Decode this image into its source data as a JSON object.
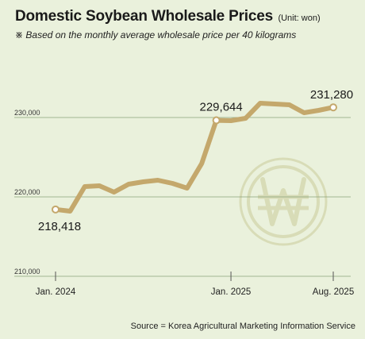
{
  "title": "Domestic Soybean Wholesale Prices",
  "unit": "(Unit: won)",
  "subtitle": "※ Based on the monthly average wholesale price per 40 kilograms",
  "source": "Source =  Korea Agricultural Marketing Information Service",
  "colors": {
    "background": "#eaf1dc",
    "line": "#c4a86c",
    "marker_fill": "#ffffff",
    "watermark": "#d8dcb7",
    "grid": "#8aa27a"
  },
  "watermark_icon": "won-coin-icon",
  "chart_data": {
    "type": "line",
    "title": "Domestic Soybean Wholesale Prices",
    "xlabel": "",
    "ylabel": "",
    "x": [
      "2024-01",
      "2024-02",
      "2024-03",
      "2024-04",
      "2024-05",
      "2024-06",
      "2024-07",
      "2024-08",
      "2024-09",
      "2024-10",
      "2024-11",
      "2024-12",
      "2025-01",
      "2025-02",
      "2025-03",
      "2025-04",
      "2025-05",
      "2025-06",
      "2025-07",
      "2025-08"
    ],
    "y_ticks": [
      210000,
      220000,
      230000
    ],
    "y_tick_labels": [
      "210,000",
      "220,000",
      "230,000"
    ],
    "x_tick_labels": [
      {
        "x": "2024-01",
        "label": "Jan. 2024"
      },
      {
        "x": "2025-01",
        "label": "Jan. 2025"
      },
      {
        "x": "2025-08",
        "label": "Aug. 2025"
      }
    ],
    "ylim": [
      210000,
      232000
    ],
    "grid": true,
    "series": [
      {
        "values": [
          218418,
          218200,
          221300,
          221400,
          220600,
          221600,
          221900,
          222100,
          221700,
          221100,
          224200,
          229644,
          229600,
          229900,
          231800,
          231700,
          231600,
          230600,
          230900,
          231280
        ]
      }
    ],
    "data_labels": [
      {
        "x": "2024-01",
        "text": "218,418",
        "position": "below-left"
      },
      {
        "x": "2024-12",
        "text": "229,644",
        "position": "above"
      },
      {
        "x": "2025-08",
        "text": "231,280",
        "position": "above"
      }
    ]
  }
}
